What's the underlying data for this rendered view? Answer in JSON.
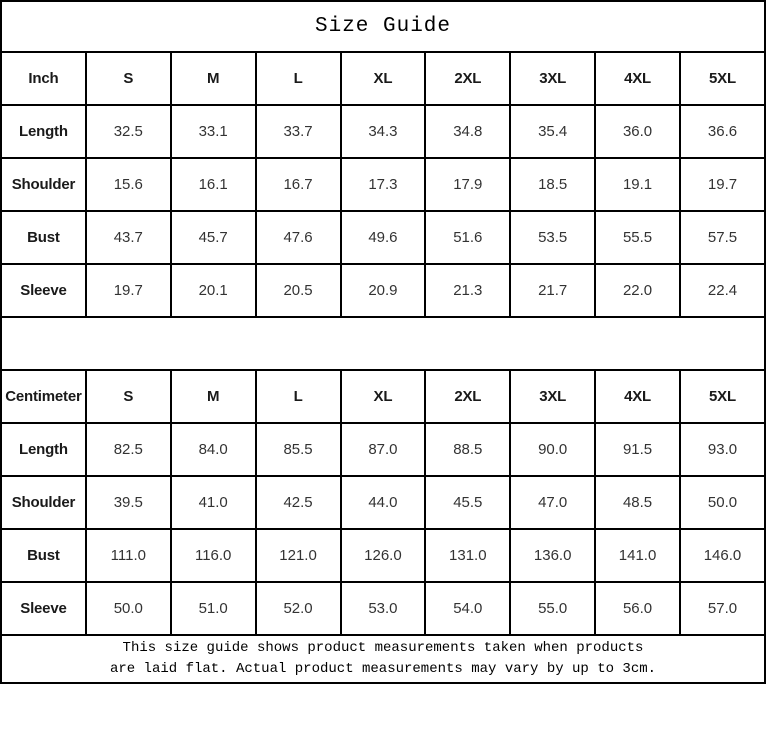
{
  "page": {
    "title": "Size Guide"
  },
  "colors": {
    "border": "#000000",
    "background": "#ffffff",
    "header_text": "#1a1a1a",
    "value_text": "#333333"
  },
  "tables": [
    {
      "name": "inch",
      "unit_label": "Inch",
      "header": [
        "Inch",
        "S",
        "M",
        "L",
        "XL",
        "2XL",
        "3XL",
        "4XL",
        "5XL"
      ],
      "rows": [
        {
          "label": "Length",
          "values": [
            "32.5",
            "33.1",
            "33.7",
            "34.3",
            "34.8",
            "35.4",
            "36.0",
            "36.6"
          ]
        },
        {
          "label": "Shoulder",
          "values": [
            "15.6",
            "16.1",
            "16.7",
            "17.3",
            "17.9",
            "18.5",
            "19.1",
            "19.7"
          ]
        },
        {
          "label": "Bust",
          "values": [
            "43.7",
            "45.7",
            "47.6",
            "49.6",
            "51.6",
            "53.5",
            "55.5",
            "57.5"
          ]
        },
        {
          "label": "Sleeve",
          "values": [
            "19.7",
            "20.1",
            "20.5",
            "20.9",
            "21.3",
            "21.7",
            "22.0",
            "22.4"
          ]
        }
      ]
    },
    {
      "name": "centimeter",
      "unit_label": "Centimeter",
      "header": [
        "Centimeter",
        "S",
        "M",
        "L",
        "XL",
        "2XL",
        "3XL",
        "4XL",
        "5XL"
      ],
      "rows": [
        {
          "label": "Length",
          "values": [
            "82.5",
            "84.0",
            "85.5",
            "87.0",
            "88.5",
            "90.0",
            "91.5",
            "93.0"
          ]
        },
        {
          "label": "Shoulder",
          "values": [
            "39.5",
            "41.0",
            "42.5",
            "44.0",
            "45.5",
            "47.0",
            "48.5",
            "50.0"
          ]
        },
        {
          "label": "Bust",
          "values": [
            "111.0",
            "116.0",
            "121.0",
            "126.0",
            "131.0",
            "136.0",
            "141.0",
            "146.0"
          ]
        },
        {
          "label": "Sleeve",
          "values": [
            "50.0",
            "51.0",
            "52.0",
            "53.0",
            "54.0",
            "55.0",
            "56.0",
            "57.0"
          ]
        }
      ]
    }
  ],
  "footer": {
    "line1": "This size guide shows product measurements taken when products",
    "line2": "are laid flat. Actual product measurements may vary by up to 3cm."
  }
}
